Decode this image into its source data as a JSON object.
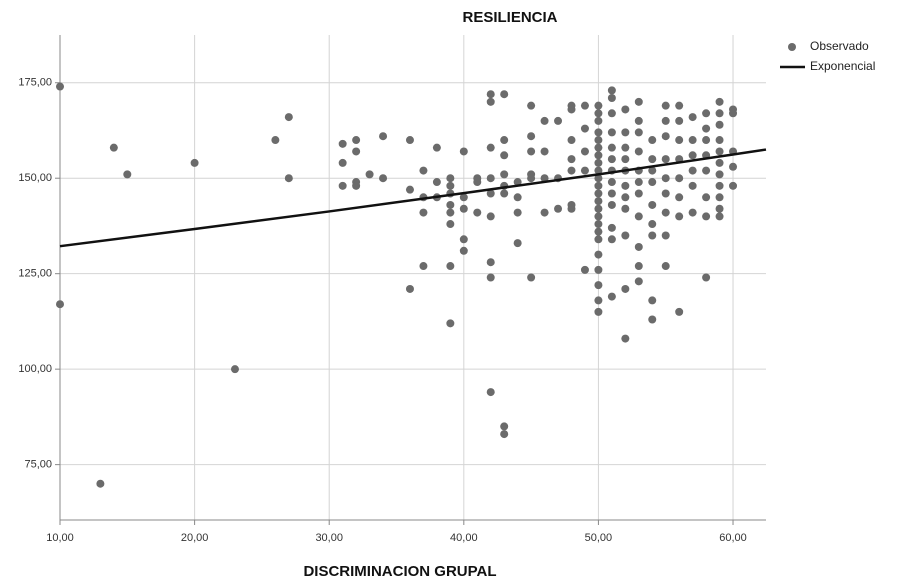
{
  "chart_data": {
    "type": "scatter",
    "title": "RESILIENCIA",
    "x_label": "DISCRIMINACION GRUPAL",
    "xlim": [
      10,
      62.45
    ],
    "ylim": [
      60.5,
      187.5
    ],
    "xticks": [
      {
        "value": 10,
        "label": "10,00"
      },
      {
        "value": 20,
        "label": "20,00"
      },
      {
        "value": 30,
        "label": "30,00"
      },
      {
        "value": 40,
        "label": "40,00"
      },
      {
        "value": 50,
        "label": "50,00"
      },
      {
        "value": 60,
        "label": "60,00"
      }
    ],
    "yticks": [
      {
        "value": 75,
        "label": "75,00"
      },
      {
        "value": 100,
        "label": "100,00"
      },
      {
        "value": 125,
        "label": "125,00"
      },
      {
        "value": 150,
        "label": "150,00"
      },
      {
        "value": 175,
        "label": "175,00"
      }
    ],
    "grid": true,
    "legend": "right",
    "series": [
      {
        "name": "Observado",
        "type": "scatter",
        "color": "#6b6b6b",
        "x": [
          10,
          10,
          13,
          14,
          15,
          20,
          23,
          26,
          27,
          27,
          31,
          31,
          31,
          32,
          32,
          32,
          32,
          33,
          34,
          34,
          36,
          36,
          36,
          37,
          37,
          37,
          37,
          38,
          38,
          38,
          39,
          39,
          39,
          39,
          39,
          39,
          39,
          39,
          40,
          40,
          40,
          40,
          40,
          41,
          41,
          41,
          42,
          42,
          42,
          42,
          42,
          42,
          42,
          42,
          42,
          43,
          43,
          43,
          43,
          43,
          43,
          43,
          43,
          44,
          44,
          44,
          44,
          45,
          45,
          45,
          45,
          45,
          45,
          46,
          46,
          46,
          46,
          47,
          47,
          47,
          48,
          48,
          48,
          48,
          48,
          48,
          48,
          49,
          49,
          49,
          49,
          49,
          50,
          50,
          50,
          50,
          50,
          50,
          50,
          50,
          50,
          50,
          50,
          50,
          50,
          50,
          50,
          50,
          50,
          50,
          50,
          50,
          50,
          50,
          50,
          51,
          51,
          51,
          51,
          51,
          51,
          51,
          51,
          51,
          51,
          51,
          51,
          51,
          52,
          52,
          52,
          52,
          52,
          52,
          52,
          52,
          52,
          52,
          52,
          53,
          53,
          53,
          53,
          53,
          53,
          53,
          53,
          53,
          53,
          53,
          54,
          54,
          54,
          54,
          54,
          54,
          54,
          54,
          54,
          55,
          55,
          55,
          55,
          55,
          55,
          55,
          55,
          55,
          56,
          56,
          56,
          56,
          56,
          56,
          56,
          56,
          57,
          57,
          57,
          57,
          57,
          57,
          58,
          58,
          58,
          58,
          58,
          58,
          58,
          58,
          59,
          59,
          59,
          59,
          59,
          59,
          59,
          59,
          59,
          59,
          59,
          60,
          60,
          60,
          60,
          60
        ],
        "values": [
          174,
          117,
          70,
          158,
          151,
          154,
          100,
          160,
          166,
          150,
          159,
          154,
          148,
          160,
          157,
          149,
          148,
          151,
          161,
          150,
          160,
          147,
          121,
          152,
          145,
          141,
          127,
          158,
          149,
          145,
          150,
          148,
          146,
          143,
          141,
          138,
          127,
          112,
          157,
          145,
          142,
          134,
          131,
          150,
          149,
          141,
          172,
          170,
          158,
          150,
          146,
          140,
          128,
          124,
          94,
          172,
          160,
          156,
          151,
          148,
          146,
          85,
          83,
          149,
          145,
          141,
          133,
          169,
          161,
          157,
          151,
          150,
          124,
          165,
          157,
          150,
          141,
          165,
          150,
          142,
          169,
          168,
          160,
          155,
          152,
          143,
          142,
          169,
          163,
          157,
          152,
          126,
          169,
          167,
          165,
          162,
          160,
          158,
          156,
          154,
          152,
          150,
          148,
          146,
          144,
          142,
          140,
          138,
          136,
          134,
          130,
          126,
          122,
          118,
          115,
          173,
          171,
          167,
          162,
          158,
          155,
          152,
          149,
          146,
          143,
          137,
          134,
          119,
          168,
          162,
          158,
          155,
          152,
          148,
          145,
          142,
          135,
          121,
          108,
          170,
          165,
          162,
          157,
          152,
          149,
          146,
          140,
          132,
          127,
          123,
          160,
          155,
          152,
          149,
          143,
          138,
          135,
          118,
          113,
          169,
          165,
          161,
          155,
          150,
          146,
          141,
          135,
          127,
          169,
          165,
          160,
          155,
          150,
          145,
          140,
          115,
          166,
          160,
          156,
          152,
          148,
          141,
          167,
          163,
          160,
          156,
          152,
          145,
          140,
          124,
          170,
          167,
          164,
          160,
          157,
          154,
          151,
          148,
          145,
          142,
          140,
          168,
          167,
          157,
          153,
          148
        ]
      },
      {
        "name": "Exponencial",
        "type": "line",
        "color": "#111111",
        "x": [
          10,
          20,
          30,
          40,
          50,
          60,
          62.45
        ],
        "values": [
          132.2,
          136.7,
          141.3,
          146.1,
          151.0,
          156.2,
          157.5
        ]
      }
    ]
  }
}
